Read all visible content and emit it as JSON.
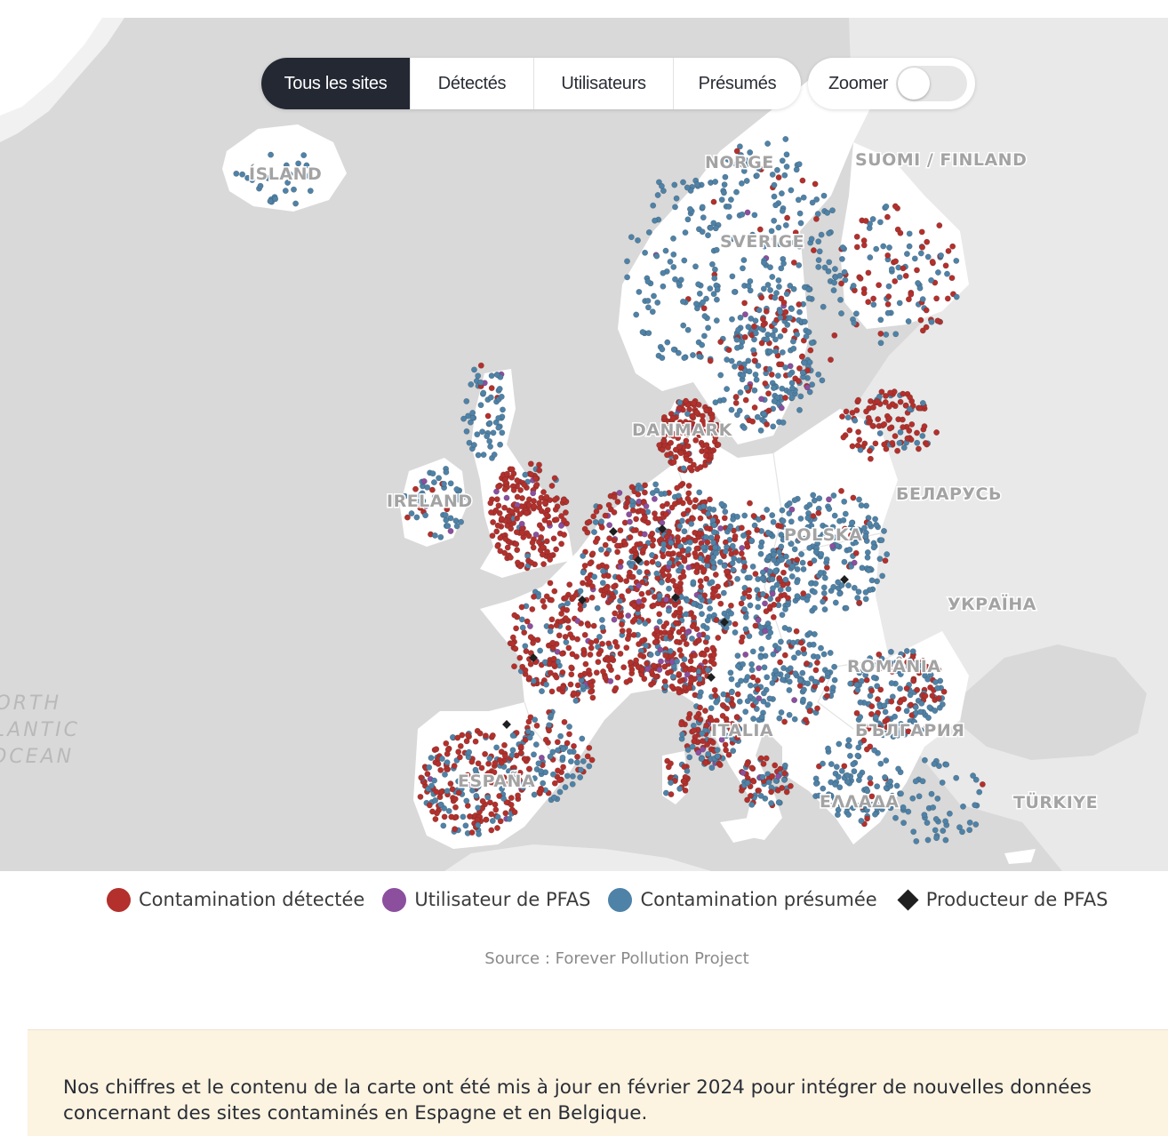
{
  "filters": {
    "tabs": [
      {
        "label": "Tous les sites",
        "active": true
      },
      {
        "label": "Détectés",
        "active": false
      },
      {
        "label": "Utilisateurs",
        "active": false
      },
      {
        "label": "Présumés",
        "active": false
      }
    ],
    "zoom_label": "Zoomer",
    "zoom_enabled": false
  },
  "map": {
    "country_labels": [
      "ÍSLAND",
      "NORGE",
      "SUOMI / FINLAND",
      "SVERIGE",
      "DANMARK",
      "IRELAND",
      "БЕЛАРУСЬ",
      "POLSKA",
      "УКРАЇНА",
      "ROMÂNIA",
      "ITALIA",
      "БЪЛГАРИЯ",
      "ESPAÑA",
      "ΕΛΛΑΔΑ",
      "TÜRKIYE"
    ],
    "ocean_label": [
      "NORTH",
      "ATLANTIC",
      "OCEAN"
    ]
  },
  "legend": {
    "items": [
      {
        "label": "Contamination détectée",
        "color": "#b3302c",
        "marker": "circle"
      },
      {
        "label": "Utilisateur de PFAS",
        "color": "#8b4f9e",
        "marker": "circle"
      },
      {
        "label": "Contamination présumée",
        "color": "#4f82a7",
        "marker": "circle"
      },
      {
        "label": "Producteur de PFAS",
        "color": "#1f1f1f",
        "marker": "diamond"
      }
    ]
  },
  "source": "Source : Forever Pollution Project",
  "notice": "Nos chiffres et le contenu de la carte ont été mis à jour en février 2024 pour intégrer de nouvelles données concernant des sites contaminés en Espagne et en Belgique."
}
